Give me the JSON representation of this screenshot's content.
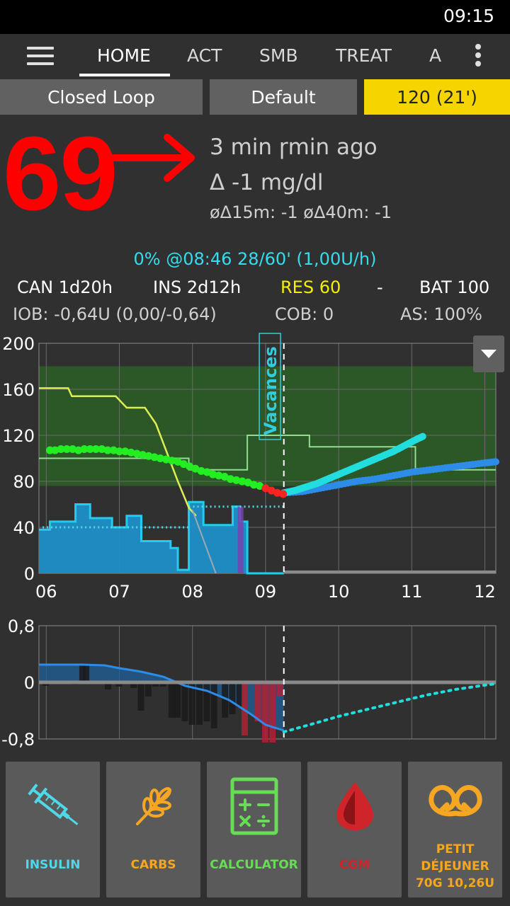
{
  "status_bar": {
    "time": "09:15"
  },
  "tabs": [
    {
      "label": "HOME",
      "active": true
    },
    {
      "label": "ACT",
      "active": false
    },
    {
      "label": "SMB",
      "active": false
    },
    {
      "label": "TREAT",
      "active": false
    },
    {
      "label": "A",
      "active": false
    }
  ],
  "loop_bar": {
    "mode": "Closed Loop",
    "profile": "Default",
    "target": "120 (21')",
    "target_color": "#f5d400"
  },
  "glucose": {
    "value": "69",
    "color": "#ff0000",
    "trend": "flat-arrow",
    "time_ago": "3 min ɼmin ago",
    "delta": "Δ -1 mg/dl",
    "avg_delta": "øΔ15m: -1  øΔ40m: -1"
  },
  "temp_basal": "0% @08:46 28/60' (1,00U/h)",
  "device_status": {
    "cannula": "CAN 1d20h",
    "insulin": "INS 2d12h",
    "reservoir": "RES 60",
    "separator": "-",
    "battery": "BAT 100",
    "reservoir_color": "#f5f000"
  },
  "iob_row": {
    "iob": "IOB: -0,64U (0,00/-0,64)",
    "cob": "COB: 0",
    "autosens": "AS: 100%"
  },
  "chart_data": [
    {
      "type": "line",
      "x_ticks": [
        "06",
        "07",
        "08",
        "09",
        "10",
        "11",
        "12"
      ],
      "y_ticks": [
        "200",
        "160",
        "120",
        "80",
        "40",
        "0"
      ],
      "ylim": [
        0,
        200
      ],
      "xlim": [
        5.9,
        12.15
      ],
      "target_range": [
        76,
        180
      ],
      "now": 9.25,
      "annotation": "Vacances",
      "annotation_x": 9.05,
      "series": [
        {
          "role": "glucose",
          "color_in_range": "#22ee22",
          "color_low": "#ff2222",
          "points": [
            [
              6.05,
              107
            ],
            [
              6.12,
              107
            ],
            [
              6.2,
              108
            ],
            [
              6.28,
              108
            ],
            [
              6.36,
              108
            ],
            [
              6.44,
              107
            ],
            [
              6.52,
              108
            ],
            [
              6.6,
              108
            ],
            [
              6.68,
              108
            ],
            [
              6.76,
              108
            ],
            [
              6.84,
              107
            ],
            [
              6.92,
              107
            ],
            [
              7.0,
              106
            ],
            [
              7.08,
              106
            ],
            [
              7.16,
              105
            ],
            [
              7.24,
              104
            ],
            [
              7.32,
              103
            ],
            [
              7.4,
              102
            ],
            [
              7.48,
              101
            ],
            [
              7.56,
              100
            ],
            [
              7.64,
              99
            ],
            [
              7.72,
              98
            ],
            [
              7.8,
              97
            ],
            [
              7.88,
              95
            ],
            [
              7.96,
              93
            ],
            [
              8.04,
              91
            ],
            [
              8.12,
              89
            ],
            [
              8.2,
              88
            ],
            [
              8.28,
              86
            ],
            [
              8.36,
              85
            ],
            [
              8.44,
              84
            ],
            [
              8.52,
              82
            ],
            [
              8.6,
              81
            ],
            [
              8.68,
              80
            ],
            [
              8.76,
              79
            ],
            [
              8.84,
              77
            ],
            [
              8.92,
              76
            ],
            [
              9.0,
              74
            ],
            [
              9.08,
              72
            ],
            [
              9.16,
              70
            ],
            [
              9.24,
              69
            ]
          ]
        },
        {
          "role": "prediction-cyan",
          "color": "#22dddd",
          "points": [
            [
              9.25,
              70
            ],
            [
              9.4,
              72
            ],
            [
              9.55,
              75
            ],
            [
              9.7,
              78
            ],
            [
              9.85,
              82
            ],
            [
              10.0,
              86
            ],
            [
              10.15,
              90
            ],
            [
              10.3,
              94
            ],
            [
              10.45,
              98
            ],
            [
              10.6,
              102
            ],
            [
              10.75,
              106
            ],
            [
              10.9,
              111
            ],
            [
              11.05,
              116
            ],
            [
              11.15,
              119
            ]
          ]
        },
        {
          "role": "prediction-blue",
          "color": "#2d8ce8",
          "points": [
            [
              9.25,
              70
            ],
            [
              9.5,
              71
            ],
            [
              9.75,
              74
            ],
            [
              10.0,
              77
            ],
            [
              10.25,
              80
            ],
            [
              10.5,
              82
            ],
            [
              10.75,
              85
            ],
            [
              11.0,
              88
            ],
            [
              11.25,
              90
            ],
            [
              11.5,
              92
            ],
            [
              11.75,
              94
            ],
            [
              12.0,
              96
            ],
            [
              12.15,
              97
            ]
          ]
        },
        {
          "role": "profile-target",
          "color": "#8ee08e",
          "points": [
            [
              5.9,
              100
            ],
            [
              6.9,
              100
            ],
            [
              6.9,
              100
            ],
            [
              7.95,
              100
            ],
            [
              7.95,
              90
            ],
            [
              8.75,
              90
            ],
            [
              8.75,
              120
            ],
            [
              9.6,
              120
            ],
            [
              9.6,
              110
            ],
            [
              11.05,
              110
            ],
            [
              11.05,
              90
            ],
            [
              12.15,
              90
            ]
          ]
        },
        {
          "role": "activity-yellow",
          "color": "#ddee55",
          "points": [
            [
              5.9,
              161
            ],
            [
              6.3,
              161
            ],
            [
              6.35,
              154
            ],
            [
              6.95,
              154
            ],
            [
              7.1,
              144
            ],
            [
              7.35,
              144
            ],
            [
              7.5,
              130
            ],
            [
              7.65,
              105
            ],
            [
              7.8,
              80
            ],
            [
              7.95,
              57
            ],
            [
              8.05,
              50
            ]
          ]
        },
        {
          "role": "basal",
          "color": "#22ccee",
          "fill": "#1d8fc8",
          "points": [
            [
              5.9,
              38
            ],
            [
              6.05,
              38
            ],
            [
              6.05,
              45
            ],
            [
              6.4,
              45
            ],
            [
              6.4,
              60
            ],
            [
              6.6,
              60
            ],
            [
              6.6,
              48
            ],
            [
              6.9,
              48
            ],
            [
              6.9,
              40
            ],
            [
              7.1,
              40
            ],
            [
              7.1,
              50
            ],
            [
              7.3,
              50
            ],
            [
              7.3,
              28
            ],
            [
              7.7,
              28
            ],
            [
              7.7,
              22
            ],
            [
              7.8,
              22
            ],
            [
              7.8,
              3
            ],
            [
              7.95,
              3
            ],
            [
              7.95,
              62
            ],
            [
              8.15,
              62
            ],
            [
              8.15,
              42
            ],
            [
              8.55,
              42
            ],
            [
              8.55,
              58
            ],
            [
              8.65,
              58
            ],
            [
              8.65,
              45
            ],
            [
              8.75,
              45
            ],
            [
              8.75,
              0
            ],
            [
              9.25,
              0
            ]
          ]
        }
      ]
    },
    {
      "type": "bar",
      "role": "iob-activity",
      "y_ticks": [
        "0,8",
        "0",
        "-0,8"
      ],
      "ylim": [
        -0.8,
        0.8
      ],
      "xlim": [
        5.9,
        12.15
      ],
      "now": 9.25,
      "bars": [
        [
          6.0,
          -0.05
        ],
        [
          6.2,
          -0.02
        ],
        [
          6.4,
          -0.03
        ],
        [
          6.5,
          0.25
        ],
        [
          6.55,
          0.25
        ],
        [
          6.7,
          -0.02
        ],
        [
          6.85,
          -0.1
        ],
        [
          7.0,
          -0.06
        ],
        [
          7.2,
          -0.08
        ],
        [
          7.3,
          -0.4
        ],
        [
          7.4,
          -0.2
        ],
        [
          7.5,
          -0.06
        ],
        [
          7.6,
          -0.06
        ],
        [
          7.72,
          -0.5
        ],
        [
          7.8,
          -0.5
        ],
        [
          7.9,
          -0.55
        ],
        [
          8.0,
          -0.6
        ],
        [
          8.1,
          -0.6
        ],
        [
          8.2,
          -0.55
        ],
        [
          8.3,
          -0.65
        ],
        [
          8.45,
          -0.5
        ],
        [
          8.55,
          -0.45
        ],
        [
          8.65,
          -0.35
        ],
        [
          8.72,
          -0.75
        ],
        [
          8.9,
          -0.55
        ],
        [
          9.0,
          -0.85
        ],
        [
          9.1,
          -0.85
        ],
        [
          9.2,
          -0.2
        ]
      ],
      "iob_line": [
        [
          5.9,
          0.25
        ],
        [
          6.2,
          0.25
        ],
        [
          6.5,
          0.25
        ],
        [
          6.8,
          0.24
        ],
        [
          7.0,
          0.2
        ],
        [
          7.3,
          0.15
        ],
        [
          7.6,
          0.08
        ],
        [
          7.9,
          -0.05
        ],
        [
          8.2,
          -0.12
        ],
        [
          8.5,
          -0.25
        ],
        [
          8.8,
          -0.45
        ],
        [
          9.0,
          -0.6
        ],
        [
          9.25,
          -0.68
        ]
      ],
      "prediction": [
        [
          9.25,
          -0.7
        ],
        [
          9.6,
          -0.6
        ],
        [
          10.0,
          -0.48
        ],
        [
          10.4,
          -0.38
        ],
        [
          10.8,
          -0.28
        ],
        [
          11.2,
          -0.18
        ],
        [
          11.6,
          -0.1
        ],
        [
          12.0,
          -0.04
        ],
        [
          12.15,
          -0.02
        ]
      ]
    }
  ],
  "actions": [
    {
      "label": "INSULIN",
      "icon": "syringe-icon",
      "color": "#4fd8e8"
    },
    {
      "label": "CARBS",
      "icon": "wheat-icon",
      "color": "#f5a623"
    },
    {
      "label": "CALCULATOR",
      "icon": "calculator-icon",
      "color": "#66dd55"
    },
    {
      "label": "CGM",
      "icon": "blood-drop-icon",
      "color": "#d0242b"
    },
    {
      "label_line1": "PETIT",
      "label_line2": "DÉJEUNER",
      "label_line3": "70G 10,26U",
      "icon": "pretzel-icon",
      "color": "#f5a623"
    }
  ]
}
